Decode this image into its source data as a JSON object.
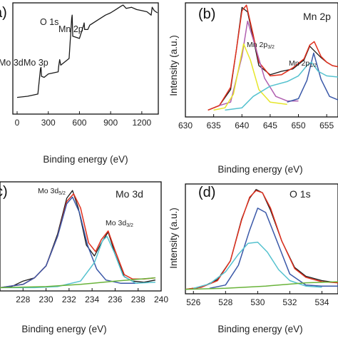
{
  "colors": {
    "raw": "#1a1a1a",
    "envelope": "#e0301e",
    "component_1": "#b05fb0",
    "component_2": "#e6e62a",
    "component_3": "#3a58a8",
    "component_4": "#55c2cf",
    "background": "#69b33a"
  },
  "chart_data": [
    {
      "panel": "(a)",
      "type": "line",
      "xlabel": "Binding energy (eV)",
      "xticks": [
        "0",
        "300",
        "600",
        "900",
        "1200"
      ],
      "xlim": [
        0,
        1400
      ],
      "ylim": [
        0,
        10
      ],
      "annotations": [
        "O 1s",
        "Mn 2p",
        "Mo 3d",
        "Mo 3p"
      ],
      "series": [
        {
          "role": "survey",
          "x": [
            0,
            100,
            200,
            225,
            230,
            235,
            260,
            300,
            395,
            400,
            410,
            420,
            500,
            525,
            530,
            535,
            600,
            640,
            645,
            650,
            680,
            700,
            800,
            850,
            900,
            950,
            1000,
            1020,
            1050,
            1100,
            1150,
            1200,
            1250,
            1290,
            1300,
            1320,
            1350
          ],
          "y": [
            1.5,
            1.6,
            1.8,
            4.1,
            4.2,
            3.4,
            3.3,
            3.6,
            3.8,
            4.3,
            4.9,
            4.4,
            5.0,
            8.6,
            8.9,
            7.0,
            6.8,
            8.0,
            8.2,
            7.6,
            7.6,
            8.0,
            8.6,
            8.9,
            9.1,
            9.4,
            9.7,
            9.8,
            9.5,
            9.6,
            9.4,
            9.3,
            9.2,
            8.9,
            9.6,
            9.3,
            9.1
          ]
        }
      ]
    },
    {
      "panel": "(b)",
      "type": "line",
      "title": "Mn 2p",
      "xlabel": "Binding energy (eV)",
      "ylabel": "Intensity (a.u.)",
      "xticks": [
        "630",
        "635",
        "640",
        "645",
        "650",
        "655"
      ],
      "xlim": [
        630,
        657
      ],
      "ylim": [
        0,
        10
      ],
      "annotations": [
        "Mn 2p3/2",
        "Mn 2p1/2"
      ],
      "series": [
        {
          "role": "raw",
          "x": [
            634,
            636,
            638,
            639,
            640,
            641,
            642,
            643,
            645,
            647,
            649,
            651,
            652,
            653,
            654,
            655,
            656,
            657
          ],
          "y": [
            0.6,
            1.0,
            2.4,
            5.8,
            9.6,
            9.2,
            6.9,
            4.5,
            3.7,
            4.0,
            4.2,
            5.0,
            6.2,
            5.7,
            5.2,
            4.8,
            4.5,
            4.4
          ]
        },
        {
          "role": "envelope",
          "x": [
            634,
            636,
            638,
            639,
            640,
            640.8,
            642,
            643,
            645,
            647,
            649,
            651,
            652,
            652.8,
            654,
            655,
            656,
            657
          ],
          "y": [
            0.6,
            1.0,
            2.6,
            5.8,
            9.3,
            9.8,
            7.2,
            4.8,
            3.6,
            3.7,
            4.3,
            5.1,
            6.3,
            6.6,
            5.3,
            4.8,
            4.5,
            4.4
          ]
        },
        {
          "role": "component_1",
          "x": [
            636,
            638,
            640,
            641,
            642,
            644,
            646,
            648,
            650
          ],
          "y": [
            1.0,
            1.3,
            5.3,
            8.4,
            6.8,
            3.4,
            1.8,
            1.4,
            1.4
          ]
        },
        {
          "role": "component_2",
          "x": [
            635,
            637,
            638.5,
            640.3,
            641.5,
            643,
            645,
            648
          ],
          "y": [
            0.6,
            0.8,
            2.0,
            6.4,
            5.0,
            2.4,
            1.3,
            1.1
          ]
        },
        {
          "role": "component_3",
          "x": [
            648,
            650,
            651.5,
            652.7,
            654,
            655.5,
            657
          ],
          "y": [
            1.3,
            1.6,
            3.2,
            5.6,
            3.3,
            1.8,
            1.5
          ]
        },
        {
          "role": "component_4",
          "x": [
            637,
            640,
            642,
            645,
            648,
            650,
            651.5,
            652.3,
            653.5,
            655,
            657
          ],
          "y": [
            0.6,
            0.8,
            1.8,
            2.7,
            3.1,
            3.6,
            4.5,
            4.8,
            4.0,
            3.6,
            3.5
          ]
        }
      ]
    },
    {
      "panel": "(c)",
      "type": "line",
      "title": "Mo 3d",
      "xlabel": "Binding energy (eV)",
      "xticks": [
        "228",
        "230",
        "232",
        "234",
        "236",
        "238",
        "240"
      ],
      "xlim": [
        226,
        240
      ],
      "ylim": [
        0,
        10
      ],
      "annotations": [
        "Mo 3d5/2",
        "Mo 3d3/2"
      ],
      "series": [
        {
          "role": "raw",
          "x": [
            226,
            227,
            228,
            229,
            230,
            231,
            231.8,
            232.3,
            232.8,
            233.5,
            234.2,
            234.8,
            235.4,
            236,
            236.8,
            237.5,
            238.5,
            239.5
          ],
          "y": [
            0.3,
            0.4,
            0.9,
            1.2,
            2.3,
            5.2,
            8.5,
            9.2,
            7.6,
            4.2,
            3.2,
            4.4,
            5.4,
            3.4,
            1.3,
            0.9,
            0.8,
            1.0
          ]
        },
        {
          "role": "envelope",
          "x": [
            226,
            228,
            229,
            230,
            231,
            231.8,
            232.4,
            233,
            233.7,
            234.3,
            234.8,
            235.4,
            236,
            236.8,
            237.5,
            238.5,
            239.5
          ],
          "y": [
            0.3,
            0.6,
            1.2,
            2.3,
            5.0,
            8.2,
            8.9,
            7.6,
            4.4,
            3.6,
            4.7,
            5.5,
            3.7,
            1.5,
            1.1,
            1.1,
            1.2
          ]
        },
        {
          "role": "component_3",
          "x": [
            226,
            228,
            229,
            230,
            231,
            231.8,
            232.3,
            232.9,
            233.6,
            234.4,
            235.2,
            236.5,
            238
          ],
          "y": [
            0.3,
            0.6,
            1.2,
            2.3,
            5.0,
            8.0,
            8.6,
            7.2,
            4.2,
            2.0,
            1.0,
            0.7,
            0.7
          ]
        },
        {
          "role": "component_4",
          "x": [
            226,
            229,
            231,
            233,
            234.2,
            234.9,
            235.3,
            235.9,
            236.7,
            237.8,
            239.5
          ],
          "y": [
            0.3,
            0.3,
            0.4,
            0.9,
            2.6,
            4.6,
            5.0,
            3.6,
            1.4,
            0.7,
            0.8
          ]
        },
        {
          "role": "background",
          "x": [
            226,
            230,
            233,
            236,
            239.5
          ],
          "y": [
            0.3,
            0.4,
            0.6,
            0.9,
            1.2
          ]
        }
      ]
    },
    {
      "panel": "(d)",
      "type": "line",
      "title": "O 1s",
      "xlabel": "Binding energy (eV)",
      "ylabel": "Intensity (a.u.)",
      "xticks": [
        "526",
        "528",
        "530",
        "532",
        "534"
      ],
      "xlim": [
        525.5,
        535
      ],
      "ylim": [
        0,
        10
      ],
      "series": [
        {
          "role": "raw",
          "x": [
            525.5,
            526.5,
            527.5,
            528.3,
            529,
            529.5,
            529.9,
            530.3,
            530.8,
            531.5,
            532.3,
            533,
            534,
            535
          ],
          "y": [
            0.4,
            0.6,
            1.3,
            3.0,
            6.8,
            8.7,
            9.5,
            9.2,
            7.6,
            4.8,
            2.4,
            1.6,
            1.2,
            1.0
          ]
        },
        {
          "role": "envelope",
          "x": [
            525.5,
            526.5,
            527.5,
            528.3,
            529,
            529.5,
            529.9,
            530.3,
            530.8,
            531.5,
            532.3,
            533,
            534,
            535
          ],
          "y": [
            0.4,
            0.6,
            1.2,
            3.0,
            6.7,
            8.8,
            9.4,
            9.2,
            7.8,
            4.8,
            2.3,
            1.5,
            1.1,
            1.0
          ]
        },
        {
          "role": "component_3",
          "x": [
            527,
            528,
            528.8,
            529.5,
            530,
            530.5,
            531.2,
            532,
            533,
            534,
            535
          ],
          "y": [
            0.5,
            0.8,
            2.6,
            5.8,
            7.8,
            7.4,
            4.8,
            1.8,
            0.8,
            0.7,
            0.7
          ]
        },
        {
          "role": "component_4",
          "x": [
            526,
            527,
            528,
            528.8,
            529.4,
            530,
            530.6,
            531.3,
            532,
            533,
            534
          ],
          "y": [
            0.5,
            0.9,
            2.0,
            3.6,
            4.6,
            4.7,
            3.8,
            2.2,
            1.2,
            0.7,
            0.6
          ]
        },
        {
          "role": "background",
          "x": [
            525.5,
            528,
            530.5,
            533,
            535
          ],
          "y": [
            0.4,
            0.5,
            0.7,
            1.0,
            1.1
          ]
        }
      ]
    }
  ]
}
